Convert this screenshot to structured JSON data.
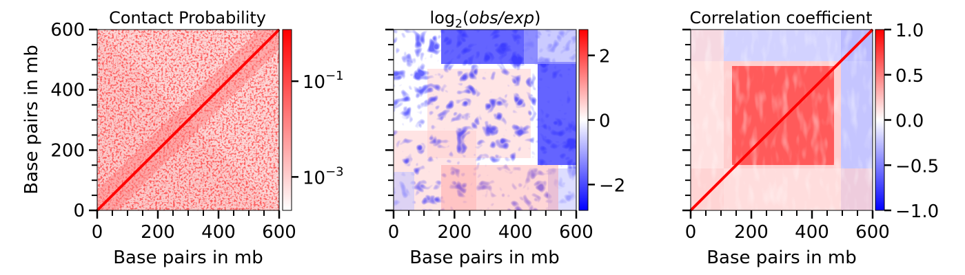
{
  "chart_data": [
    {
      "type": "heatmap",
      "title": "Contact Probability",
      "xlabel": "Base pairs in mb",
      "ylabel": "Base pairs in mb",
      "xlim": [
        0,
        600
      ],
      "ylim": [
        0,
        600
      ],
      "xticks": [
        "0",
        "200",
        "400",
        "600"
      ],
      "yticks": [
        "0",
        "200",
        "400",
        "600"
      ],
      "colormap": "white-to-red",
      "colors": {
        "low": "#ffffff",
        "high": "#ff0000"
      },
      "colorbar": {
        "scale": "log",
        "ticks": [
          {
            "base": "10",
            "exp": "−1",
            "value": 0.1
          },
          {
            "base": "10",
            "exp": "−3",
            "value": 0.001
          }
        ]
      }
    },
    {
      "type": "heatmap",
      "title_parts": {
        "pre": "log",
        "sub": "2",
        "open": "(",
        "italic": "obs/exp",
        "close": ")"
      },
      "xlabel": "Base pairs in mb",
      "xlim": [
        0,
        600
      ],
      "ylim": [
        0,
        600
      ],
      "xticks": [
        "0",
        "200",
        "400",
        "600"
      ],
      "colormap": "bwr",
      "colors": {
        "low": "#0000ff",
        "mid": "#ffffff",
        "high": "#ff0000"
      },
      "colorbar": {
        "range": [
          -2.8,
          2.8
        ],
        "ticks": [
          {
            "label": "2",
            "value": 2
          },
          {
            "label": "0",
            "value": 0
          },
          {
            "label": "−2",
            "value": -2
          }
        ]
      }
    },
    {
      "type": "heatmap",
      "title": "Correlation coefficient",
      "xlabel": "Base pairs in mb",
      "xlim": [
        0,
        600
      ],
      "ylim": [
        0,
        600
      ],
      "xticks": [
        "0",
        "200",
        "400",
        "600"
      ],
      "colormap": "bwr",
      "colors": {
        "low": "#0000ff",
        "mid": "#ffffff",
        "high": "#ff0000"
      },
      "colorbar": {
        "range": [
          -1.0,
          1.0
        ],
        "ticks": [
          {
            "label": "1.0",
            "value": 1.0
          },
          {
            "label": "0.5",
            "value": 0.5
          },
          {
            "label": "0.0",
            "value": 0.0
          },
          {
            "label": "−0.5",
            "value": -0.5
          },
          {
            "label": "−1.0",
            "value": -1.0
          }
        ]
      }
    }
  ]
}
